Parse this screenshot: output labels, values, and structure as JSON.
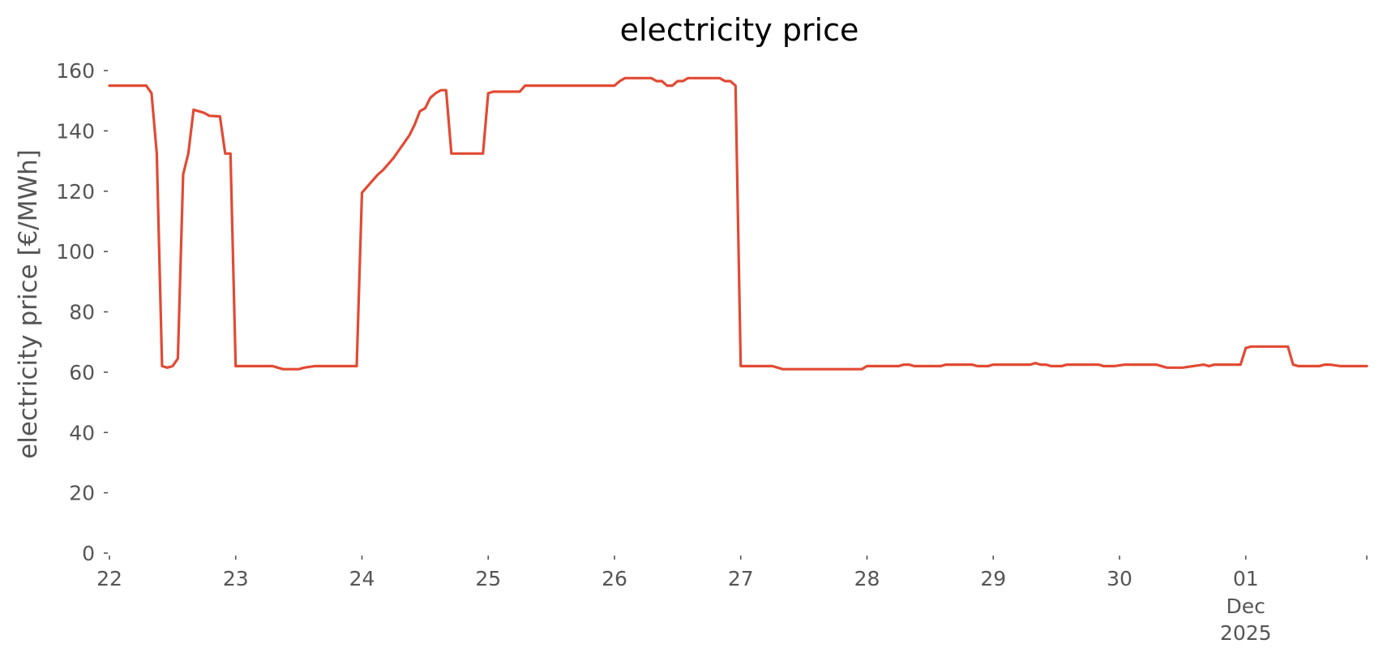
{
  "chart_data": {
    "type": "line",
    "title": "electricity price",
    "xlabel": "",
    "ylabel": "electricity price [€/MWh]",
    "ylim": [
      0,
      160
    ],
    "xlim": [
      "2025-11-22T00:00",
      "2025-12-01T23:00"
    ],
    "grid": false,
    "legend": "none",
    "colors": {
      "line": "#E24A33",
      "ticks": "#555555",
      "title": "#000000"
    },
    "y_ticks": [
      0,
      20,
      40,
      60,
      80,
      100,
      120,
      140,
      160
    ],
    "x_ticks": [
      {
        "x": "2025-11-22",
        "label": "22"
      },
      {
        "x": "2025-11-23",
        "label": "23"
      },
      {
        "x": "2025-11-24",
        "label": "24"
      },
      {
        "x": "2025-11-25",
        "label": "25"
      },
      {
        "x": "2025-11-26",
        "label": "26"
      },
      {
        "x": "2025-11-27",
        "label": "27"
      },
      {
        "x": "2025-11-28",
        "label": "28"
      },
      {
        "x": "2025-11-29",
        "label": "29"
      },
      {
        "x": "2025-11-30",
        "label": "30"
      },
      {
        "x": "2025-12-01",
        "label": "01",
        "sublabel": [
          "Dec",
          "2025"
        ]
      },
      {
        "x": "2025-12-01T23:00",
        "label": ""
      }
    ],
    "series": [
      {
        "points": [
          [
            "2025-11-22T00:00",
            155
          ],
          [
            "2025-11-22T07:00",
            155
          ],
          [
            "2025-11-22T08:00",
            152.5
          ],
          [
            "2025-11-22T09:00",
            132.5
          ],
          [
            "2025-11-22T10:00",
            62
          ],
          [
            "2025-11-22T11:00",
            61.5
          ],
          [
            "2025-11-22T12:00",
            62
          ],
          [
            "2025-11-22T13:00",
            64.5
          ],
          [
            "2025-11-22T14:00",
            125.5
          ],
          [
            "2025-11-22T15:00",
            132.5
          ],
          [
            "2025-11-22T16:00",
            147
          ],
          [
            "2025-11-22T17:00",
            146.5
          ],
          [
            "2025-11-22T18:00",
            146
          ],
          [
            "2025-11-22T19:00",
            145
          ],
          [
            "2025-11-22T21:00",
            144.8
          ],
          [
            "2025-11-22T22:00",
            132.5
          ],
          [
            "2025-11-22T23:00",
            132.5
          ],
          [
            "2025-11-23T00:00",
            62
          ],
          [
            "2025-11-23T07:00",
            62
          ],
          [
            "2025-11-23T08:00",
            61.5
          ],
          [
            "2025-11-23T09:00",
            61
          ],
          [
            "2025-11-23T12:00",
            61
          ],
          [
            "2025-11-23T13:00",
            61.5
          ],
          [
            "2025-11-23T15:00",
            62
          ],
          [
            "2025-11-23T23:00",
            62
          ],
          [
            "2025-11-24T00:00",
            119.5
          ],
          [
            "2025-11-24T01:00",
            121.5
          ],
          [
            "2025-11-24T02:00",
            123.5
          ],
          [
            "2025-11-24T03:00",
            125.5
          ],
          [
            "2025-11-24T04:00",
            127
          ],
          [
            "2025-11-24T05:00",
            129
          ],
          [
            "2025-11-24T06:00",
            131
          ],
          [
            "2025-11-24T07:00",
            133.5
          ],
          [
            "2025-11-24T08:00",
            136
          ],
          [
            "2025-11-24T09:00",
            138.5
          ],
          [
            "2025-11-24T10:00",
            142
          ],
          [
            "2025-11-24T11:00",
            146.5
          ],
          [
            "2025-11-24T12:00",
            147.5
          ],
          [
            "2025-11-24T13:00",
            151
          ],
          [
            "2025-11-24T14:00",
            152.5
          ],
          [
            "2025-11-24T15:00",
            153.5
          ],
          [
            "2025-11-24T16:00",
            153.5
          ],
          [
            "2025-11-24T17:00",
            132.5
          ],
          [
            "2025-11-24T23:00",
            132.5
          ],
          [
            "2025-11-25T00:00",
            152.5
          ],
          [
            "2025-11-25T01:00",
            153
          ],
          [
            "2025-11-25T02:00",
            153
          ],
          [
            "2025-11-25T06:00",
            153
          ],
          [
            "2025-11-25T07:00",
            155
          ],
          [
            "2025-11-26T00:00",
            155
          ],
          [
            "2025-11-26T01:00",
            156.5
          ],
          [
            "2025-11-26T02:00",
            157.5
          ],
          [
            "2025-11-26T07:00",
            157.5
          ],
          [
            "2025-11-26T08:00",
            156.5
          ],
          [
            "2025-11-26T09:00",
            156.5
          ],
          [
            "2025-11-26T10:00",
            155
          ],
          [
            "2025-11-26T11:00",
            155
          ],
          [
            "2025-11-26T12:00",
            156.5
          ],
          [
            "2025-11-26T13:00",
            156.5
          ],
          [
            "2025-11-26T14:00",
            157.5
          ],
          [
            "2025-11-26T20:00",
            157.5
          ],
          [
            "2025-11-26T21:00",
            156.5
          ],
          [
            "2025-11-26T22:00",
            156.5
          ],
          [
            "2025-11-26T23:00",
            155
          ],
          [
            "2025-11-27T00:00",
            62
          ],
          [
            "2025-11-27T06:00",
            62
          ],
          [
            "2025-11-27T08:00",
            61
          ],
          [
            "2025-11-27T23:00",
            61
          ],
          [
            "2025-11-28T00:00",
            62
          ],
          [
            "2025-11-28T06:00",
            62
          ],
          [
            "2025-11-28T07:00",
            62.5
          ],
          [
            "2025-11-28T08:00",
            62.5
          ],
          [
            "2025-11-28T09:00",
            62
          ],
          [
            "2025-11-28T14:00",
            62
          ],
          [
            "2025-11-28T15:00",
            62.5
          ],
          [
            "2025-11-28T20:00",
            62.5
          ],
          [
            "2025-11-28T21:00",
            62
          ],
          [
            "2025-11-28T23:00",
            62
          ],
          [
            "2025-11-29T00:00",
            62.5
          ],
          [
            "2025-11-29T07:00",
            62.5
          ],
          [
            "2025-11-29T08:00",
            63
          ],
          [
            "2025-11-29T09:00",
            62.5
          ],
          [
            "2025-11-29T10:00",
            62.5
          ],
          [
            "2025-11-29T11:00",
            62
          ],
          [
            "2025-11-29T13:00",
            62
          ],
          [
            "2025-11-29T14:00",
            62.5
          ],
          [
            "2025-11-29T20:00",
            62.5
          ],
          [
            "2025-11-29T21:00",
            62
          ],
          [
            "2025-11-29T23:00",
            62
          ],
          [
            "2025-11-30T01:00",
            62.5
          ],
          [
            "2025-11-30T07:00",
            62.5
          ],
          [
            "2025-11-30T09:00",
            61.5
          ],
          [
            "2025-11-30T12:00",
            61.5
          ],
          [
            "2025-11-30T14:00",
            62
          ],
          [
            "2025-11-30T16:00",
            62.5
          ],
          [
            "2025-11-30T17:00",
            62
          ],
          [
            "2025-11-30T18:00",
            62.5
          ],
          [
            "2025-11-30T23:00",
            62.5
          ],
          [
            "2025-12-01T00:00",
            68
          ],
          [
            "2025-12-01T01:00",
            68.5
          ],
          [
            "2025-12-01T08:00",
            68.5
          ],
          [
            "2025-12-01T09:00",
            62.5
          ],
          [
            "2025-12-01T10:00",
            62
          ],
          [
            "2025-12-01T14:00",
            62
          ],
          [
            "2025-12-01T15:00",
            62.5
          ],
          [
            "2025-12-01T16:00",
            62.5
          ],
          [
            "2025-12-01T18:00",
            62
          ],
          [
            "2025-12-01T23:00",
            62
          ]
        ]
      }
    ]
  }
}
